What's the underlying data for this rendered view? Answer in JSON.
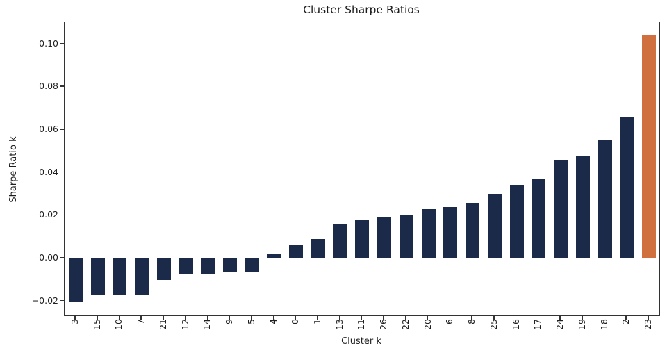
{
  "figure": {
    "title": "Cluster Sharpe Ratios",
    "xlabel": "Cluster k",
    "ylabel": "Sharpe Ratio k"
  },
  "chart_data": {
    "type": "bar",
    "title": "Cluster Sharpe Ratios",
    "xlabel": "Cluster k",
    "ylabel": "Sharpe Ratio k",
    "categories": [
      "3",
      "15",
      "10",
      "7",
      "21",
      "12",
      "14",
      "9",
      "5",
      "4",
      "0",
      "1",
      "13",
      "11",
      "26",
      "22",
      "20",
      "6",
      "8",
      "25",
      "16",
      "17",
      "24",
      "19",
      "18",
      "2",
      "23"
    ],
    "values": [
      -0.02,
      -0.017,
      -0.017,
      -0.017,
      -0.01,
      -0.007,
      -0.007,
      -0.006,
      -0.006,
      0.002,
      0.006,
      0.009,
      0.016,
      0.018,
      0.019,
      0.02,
      0.023,
      0.024,
      0.026,
      0.03,
      0.034,
      0.037,
      0.046,
      0.048,
      0.055,
      0.066,
      0.104
    ],
    "yticks": [
      0.1,
      0.08,
      0.06,
      0.04,
      0.02,
      0.0,
      -0.02
    ],
    "ytick_labels": [
      "0.10",
      "0.08",
      "0.06",
      "0.04",
      "0.02",
      "0.00",
      "−0.02"
    ],
    "ylim": [
      -0.0266,
      0.1102
    ],
    "grid": false,
    "legend_position": "none",
    "bar_color": "#1b2a48",
    "highlight_color": "#d0703e",
    "highlight_category": "23",
    "axis_color": "#333333",
    "text_color": "#1f1f1f"
  }
}
